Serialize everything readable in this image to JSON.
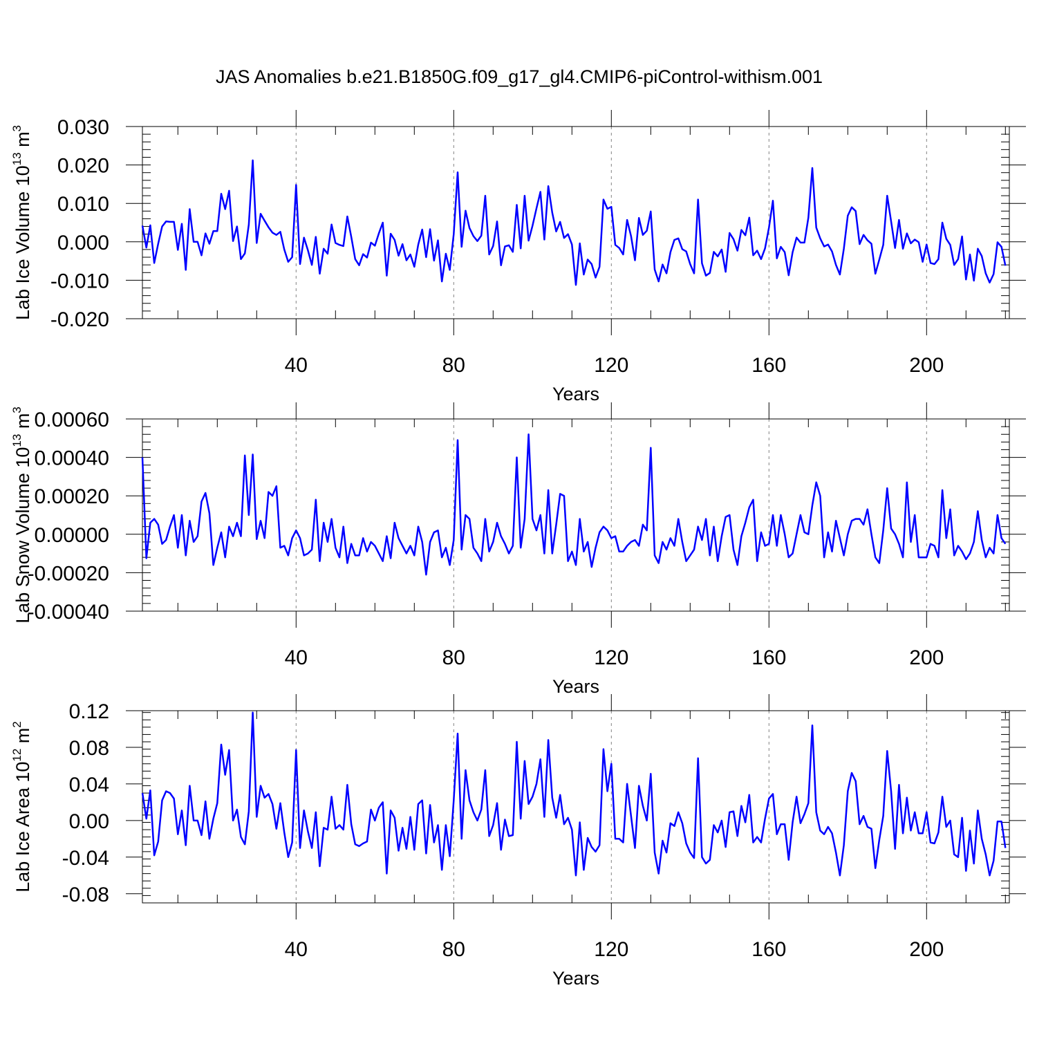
{
  "title": "JAS Anomalies b.e21.B1850G.f09_g17_gl4.CMIP6-piControl-withism.001",
  "colors": {
    "series": "#0000ff",
    "axis": "#000000",
    "grid": "#808080"
  },
  "chart_data": [
    {
      "type": "line",
      "ylabel": "Lab Ice Volume 10",
      "ylabel_sup": "13",
      "ylabel_unit": "m",
      "ylabel_unit_sup": "3",
      "xlabel": "Years",
      "xlim": [
        1,
        221
      ],
      "ylim": [
        -0.02,
        0.03
      ],
      "xticks": [
        40,
        80,
        120,
        160,
        200
      ],
      "yticks": [
        -0.02,
        -0.01,
        0.0,
        0.01,
        0.02,
        0.03
      ],
      "ytick_labels": [
        "-0.020",
        "-0.010",
        "0.000",
        "0.010",
        "0.020",
        "0.030"
      ],
      "values": [
        0.0042,
        -0.0015,
        0.0043,
        -0.0055,
        -0.0005,
        0.004,
        0.0053,
        0.0052,
        0.0052,
        -0.0021,
        0.0047,
        -0.0073,
        0.0085,
        0.0,
        0.0,
        -0.0035,
        0.0022,
        -0.0005,
        0.0028,
        0.0028,
        0.0125,
        0.0085,
        0.0133,
        0.0002,
        0.004,
        -0.0045,
        -0.003,
        0.0045,
        0.0212,
        -0.0003,
        0.0073,
        0.0055,
        0.0038,
        0.0024,
        0.0018,
        0.0026,
        -0.002,
        -0.0052,
        -0.004,
        0.0148,
        -0.0058,
        0.0011,
        -0.0022,
        -0.006,
        0.0013,
        -0.0083,
        -0.0018,
        -0.0031,
        0.0045,
        -0.0003,
        -0.0008,
        -0.0011,
        0.0066,
        0.0013,
        -0.0045,
        -0.0061,
        -0.0032,
        -0.0041,
        -0.0002,
        -0.001,
        0.0022,
        0.005,
        -0.0088,
        0.0021,
        0.0005,
        -0.0036,
        -0.0006,
        -0.0048,
        -0.0033,
        -0.0065,
        -0.0007,
        0.0032,
        -0.004,
        0.0033,
        -0.0049,
        0.0004,
        -0.0103,
        -0.0031,
        -0.0073,
        0.002,
        0.0181,
        -0.0013,
        0.0081,
        0.0036,
        0.0015,
        0.0002,
        0.0016,
        0.012,
        -0.0033,
        -0.0011,
        0.0053,
        -0.0061,
        -0.0012,
        -0.0009,
        -0.0026,
        0.0096,
        -0.0017,
        0.012,
        0.0003,
        0.0042,
        0.0087,
        0.013,
        0.0006,
        0.0145,
        0.0076,
        0.0027,
        0.0052,
        0.001,
        0.002,
        -0.0007,
        -0.0112,
        -0.0004,
        -0.0085,
        -0.0046,
        -0.0058,
        -0.0093,
        -0.0065,
        0.011,
        0.0086,
        0.0091,
        -0.0008,
        -0.0016,
        -0.0033,
        0.0057,
        0.0015,
        -0.0048,
        0.0062,
        0.0018,
        0.0029,
        0.0079,
        -0.0072,
        -0.0103,
        -0.0059,
        -0.0082,
        -0.0027,
        0.0005,
        0.0009,
        -0.0019,
        -0.0025,
        -0.0058,
        -0.0082,
        0.011,
        -0.0056,
        -0.0088,
        -0.0081,
        -0.0026,
        -0.0038,
        -0.002,
        -0.0078,
        0.0023,
        0.0007,
        -0.0023,
        0.0031,
        0.0017,
        0.0063,
        -0.0035,
        -0.0023,
        -0.0045,
        -0.0017,
        0.0037,
        0.0107,
        -0.0043,
        -0.0013,
        -0.0027,
        -0.0087,
        -0.0027,
        0.0011,
        -0.0002,
        -0.0002,
        0.0063,
        0.0192,
        0.0037,
        0.0009,
        -0.0012,
        -0.0007,
        -0.0025,
        -0.006,
        -0.0085,
        -0.0018,
        0.0068,
        0.009,
        0.008,
        -0.0006,
        0.0018,
        0.0004,
        -0.0005,
        -0.0083,
        -0.0046,
        -0.0008,
        0.012,
        0.0053,
        -0.0016,
        0.0057,
        -0.0018,
        0.0022,
        -0.0004,
        0.0006,
        -0.0001,
        -0.0052,
        -0.0007,
        -0.0055,
        -0.0058,
        -0.0045,
        0.005,
        0.0008,
        -0.0008,
        -0.006,
        -0.0045,
        0.0014,
        -0.0098,
        -0.0033,
        -0.0101,
        -0.0018,
        -0.0037,
        -0.0082,
        -0.0106,
        -0.0084,
        -0.0001,
        -0.0013,
        -0.0062
      ]
    },
    {
      "type": "line",
      "ylabel": "Lab Snow Volume 10",
      "ylabel_sup": "13",
      "ylabel_unit": "m",
      "ylabel_unit_sup": "3",
      "xlabel": "Years",
      "xlim": [
        1,
        221
      ],
      "ylim": [
        -0.0004,
        0.0006
      ],
      "xticks": [
        40,
        80,
        120,
        160,
        200
      ],
      "yticks": [
        -0.0004,
        -0.0002,
        0.0,
        0.0002,
        0.0004,
        0.0006
      ],
      "ytick_labels": [
        "-0.00040",
        "-0.00020",
        "0.00000",
        "0.00020",
        "0.00040",
        "0.00060"
      ],
      "values": [
        0.0004,
        -0.000125,
        6e-05,
        8e-05,
        5e-05,
        -5e-05,
        -3e-05,
        4e-05,
        0.0001,
        -7e-05,
        0.0001,
        -0.00011,
        7e-05,
        -4e-05,
        -1e-05,
        0.00017,
        0.000215,
        0.00011,
        -0.00016,
        -7e-05,
        1e-05,
        -0.00012,
        4e-05,
        -1e-05,
        6e-05,
        -1e-05,
        0.00041,
        0.0001,
        0.000415,
        -2.5e-05,
        7e-05,
        -2e-05,
        0.00022,
        0.0002,
        0.00025,
        -7e-05,
        -6e-05,
        -0.00011,
        -2e-05,
        2e-05,
        -2e-05,
        -0.00011,
        -0.0001,
        -8e-05,
        0.00018,
        -0.00014,
        6e-05,
        -4e-05,
        8e-05,
        -7e-05,
        -0.00012,
        4e-05,
        -0.00015,
        -5e-05,
        -0.00011,
        -0.00011,
        -2e-05,
        -9e-05,
        -4e-05,
        -6e-05,
        -0.0001,
        -0.00014,
        -1e-05,
        -0.000125,
        6e-05,
        -2e-05,
        -6e-05,
        -0.0001,
        -6e-05,
        -0.00011,
        4e-05,
        -4e-05,
        -0.00021,
        -4e-05,
        1e-05,
        2e-05,
        -0.00012,
        -7e-05,
        -0.00016,
        -3e-05,
        0.00049,
        -8e-05,
        0.0001,
        8e-05,
        -7e-05,
        -0.0001,
        -0.00014,
        8e-05,
        -9e-05,
        -4e-05,
        6e-05,
        -1e-05,
        -5e-05,
        -0.0001,
        -6e-05,
        0.0004,
        -7e-05,
        8e-05,
        0.00052,
        8e-05,
        2e-05,
        0.0001,
        -0.0001,
        0.00023,
        -0.0001,
        5e-05,
        0.00021,
        0.0002,
        -0.00014,
        -9e-05,
        -0.00016,
        8e-05,
        -9e-05,
        -4e-05,
        -0.00017,
        -7e-05,
        1e-05,
        4e-05,
        2e-05,
        -2e-05,
        -1e-05,
        -9e-05,
        -9e-05,
        -6e-05,
        -4e-05,
        -3e-05,
        -6e-05,
        5e-05,
        2e-05,
        0.00045,
        -0.00011,
        -0.00015,
        -4e-05,
        -8e-05,
        -2e-05,
        -6e-05,
        8e-05,
        -4e-05,
        -0.00014,
        -0.00011,
        -8e-05,
        4e-05,
        -3e-05,
        8e-05,
        -0.00011,
        4e-05,
        -0.00014,
        -1e-05,
        9e-05,
        0.0001,
        -8e-05,
        -0.00016,
        -1e-05,
        6e-05,
        0.00014,
        0.00018,
        -0.00014,
        1e-05,
        -6e-05,
        -5e-05,
        0.0001,
        -6e-05,
        0.0001,
        0.0,
        -0.00012,
        -0.0001,
        0.0,
        0.0001,
        1e-05,
        0.0,
        0.00015,
        0.00027,
        0.0002,
        -0.00012,
        1e-05,
        -9e-05,
        7e-05,
        -2e-05,
        -0.00011,
        0.0,
        7e-05,
        8e-05,
        8e-05,
        5e-05,
        0.00013,
        0.0,
        -0.00012,
        -0.00015,
        2e-05,
        0.00024,
        3e-05,
        0.0,
        -5e-05,
        -0.00012,
        0.00027,
        -4e-05,
        0.0001,
        -0.00012,
        -0.00012,
        -0.00012,
        -5e-05,
        -6e-05,
        -0.00012,
        0.00023,
        -2e-05,
        0.00013,
        -0.00011,
        -6e-05,
        -9e-05,
        -0.00013,
        -0.0001,
        -4e-05,
        0.00012,
        -3e-05,
        -0.00012,
        -7e-05,
        -0.0001,
        0.0001,
        -2e-05,
        -5e-05
      ]
    },
    {
      "type": "line",
      "ylabel": "Lab Ice Area 10",
      "ylabel_sup": "12",
      "ylabel_unit": "m",
      "ylabel_unit_sup": "2",
      "xlabel": "Years",
      "xlim": [
        1,
        221
      ],
      "ylim": [
        -0.09,
        0.12
      ],
      "xticks": [
        40,
        80,
        120,
        160,
        200
      ],
      "yticks": [
        -0.08,
        -0.04,
        0.0,
        0.04,
        0.08,
        0.12
      ],
      "ytick_labels": [
        "-0.08",
        "-0.04",
        "0.00",
        "0.04",
        "0.08",
        "0.12"
      ],
      "values": [
        0.03,
        0.002,
        0.033,
        -0.038,
        -0.023,
        0.022,
        0.032,
        0.03,
        0.024,
        -0.015,
        0.011,
        -0.027,
        0.038,
        0.0,
        0.0,
        -0.016,
        0.021,
        -0.02,
        0.002,
        0.019,
        0.083,
        0.05,
        0.077,
        0.0,
        0.012,
        -0.018,
        -0.026,
        0.01,
        0.118,
        0.004,
        0.038,
        0.025,
        0.029,
        0.018,
        -0.009,
        0.019,
        -0.013,
        -0.04,
        -0.024,
        0.077,
        -0.03,
        0.011,
        -0.012,
        -0.03,
        0.009,
        -0.05,
        -0.008,
        -0.01,
        0.026,
        -0.009,
        -0.005,
        -0.01,
        0.039,
        -0.004,
        -0.026,
        -0.028,
        -0.025,
        -0.023,
        0.012,
        0.0,
        0.014,
        0.02,
        -0.058,
        0.011,
        0.003,
        -0.033,
        -0.008,
        -0.031,
        0.004,
        -0.032,
        0.018,
        0.022,
        -0.036,
        0.017,
        -0.024,
        -0.005,
        -0.054,
        -0.005,
        -0.039,
        0.022,
        0.095,
        -0.02,
        0.055,
        0.022,
        0.009,
        0.0,
        0.012,
        0.055,
        -0.017,
        -0.005,
        0.019,
        -0.032,
        0.001,
        -0.017,
        -0.016,
        0.086,
        0.002,
        0.065,
        0.018,
        0.026,
        0.04,
        0.067,
        0.004,
        0.088,
        0.025,
        0.003,
        0.028,
        -0.004,
        0.003,
        -0.01,
        -0.06,
        -0.002,
        -0.054,
        -0.019,
        -0.029,
        -0.034,
        -0.027,
        0.078,
        0.032,
        0.062,
        -0.02,
        -0.02,
        -0.024,
        0.04,
        0.005,
        -0.03,
        0.038,
        0.016,
        0.0,
        0.051,
        -0.035,
        -0.058,
        -0.022,
        -0.035,
        -0.003,
        -0.006,
        0.009,
        -0.003,
        -0.025,
        -0.035,
        -0.041,
        0.068,
        -0.04,
        -0.047,
        -0.043,
        -0.005,
        -0.013,
        0.0,
        -0.029,
        0.009,
        0.01,
        -0.017,
        0.016,
        -0.002,
        0.028,
        -0.024,
        -0.018,
        -0.024,
        0.002,
        0.024,
        0.029,
        -0.015,
        -0.004,
        -0.004,
        -0.043,
        -0.002,
        0.026,
        -0.003,
        0.007,
        0.019,
        0.104,
        0.009,
        -0.011,
        -0.015,
        -0.007,
        -0.014,
        -0.035,
        -0.06,
        -0.027,
        0.032,
        0.052,
        0.043,
        -0.004,
        0.005,
        -0.007,
        -0.009,
        -0.052,
        -0.021,
        0.005,
        0.076,
        0.032,
        -0.031,
        0.039,
        -0.014,
        0.025,
        -0.011,
        0.009,
        -0.014,
        -0.014,
        0.009,
        -0.024,
        -0.025,
        -0.013,
        0.026,
        -0.007,
        0.0,
        -0.037,
        -0.04,
        0.003,
        -0.055,
        -0.011,
        -0.047,
        0.011,
        -0.02,
        -0.037,
        -0.06,
        -0.044,
        -0.001,
        -0.001,
        -0.03
      ]
    }
  ]
}
